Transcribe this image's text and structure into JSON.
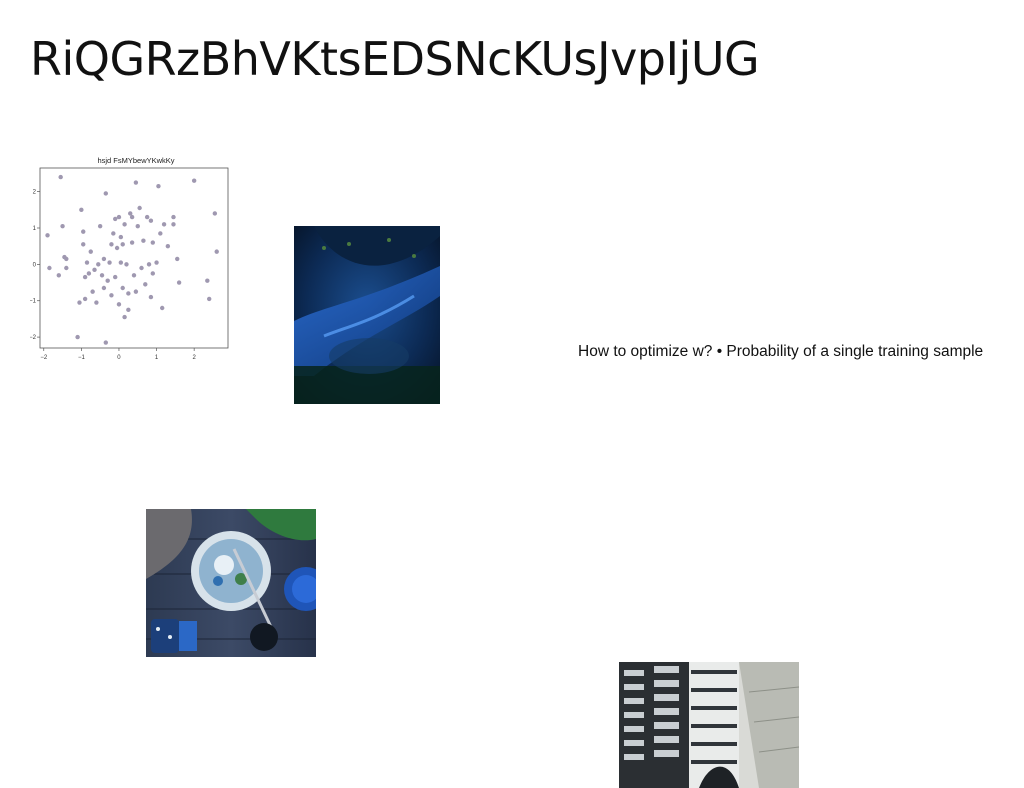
{
  "slide": {
    "title": "RiQGRzBhVKtsEDSNcKUsJvpIjUG",
    "caption": "How to optimize w? • Probability of a single training sample"
  },
  "images": {
    "blue_scene": "blue-dark-abstract-photo",
    "food_table": "food-bowl-table-photo",
    "building": "modern-building-photo"
  },
  "colors": {
    "point": "#9f98b0",
    "axes": "#555555"
  },
  "chart_data": {
    "type": "scatter",
    "title": "hsjd FsMYbewYKwkKy",
    "xlabel": "",
    "ylabel": "",
    "xlim": [
      -2.1,
      2.9
    ],
    "ylim": [
      -2.3,
      2.65
    ],
    "xticks": [
      -2,
      -1,
      0,
      1,
      2
    ],
    "yticks": [
      -2,
      -1,
      0,
      1,
      2
    ],
    "points": [
      [
        -1.55,
        2.4
      ],
      [
        -1.9,
        0.8
      ],
      [
        -1.85,
        -0.1
      ],
      [
        -1.6,
        -0.3
      ],
      [
        -1.5,
        1.05
      ],
      [
        -1.45,
        0.2
      ],
      [
        -1.4,
        0.15
      ],
      [
        -1.4,
        -0.1
      ],
      [
        -1.1,
        -2.0
      ],
      [
        -1.05,
        -1.05
      ],
      [
        -1.0,
        1.5
      ],
      [
        -0.95,
        0.9
      ],
      [
        -0.95,
        0.55
      ],
      [
        -0.9,
        -0.35
      ],
      [
        -0.9,
        -0.95
      ],
      [
        -0.85,
        0.05
      ],
      [
        -0.8,
        -0.25
      ],
      [
        -0.75,
        0.35
      ],
      [
        -0.7,
        -0.75
      ],
      [
        -0.65,
        -0.15
      ],
      [
        -0.6,
        -1.05
      ],
      [
        -0.55,
        0.0
      ],
      [
        -0.5,
        1.05
      ],
      [
        -0.45,
        -0.3
      ],
      [
        -0.4,
        0.15
      ],
      [
        -0.4,
        -0.65
      ],
      [
        -0.35,
        1.95
      ],
      [
        -0.35,
        -2.15
      ],
      [
        -0.3,
        -0.45
      ],
      [
        -0.25,
        0.05
      ],
      [
        -0.2,
        0.55
      ],
      [
        -0.2,
        -0.85
      ],
      [
        -0.15,
        0.85
      ],
      [
        -0.1,
        1.25
      ],
      [
        -0.1,
        -0.35
      ],
      [
        -0.05,
        0.45
      ],
      [
        0.0,
        1.3
      ],
      [
        0.0,
        -1.1
      ],
      [
        0.05,
        0.75
      ],
      [
        0.05,
        0.05
      ],
      [
        0.1,
        0.55
      ],
      [
        0.1,
        -0.65
      ],
      [
        0.15,
        1.1
      ],
      [
        0.15,
        -1.45
      ],
      [
        0.2,
        0.0
      ],
      [
        0.25,
        -0.8
      ],
      [
        0.25,
        -1.25
      ],
      [
        0.3,
        1.4
      ],
      [
        0.35,
        1.3
      ],
      [
        0.35,
        0.6
      ],
      [
        0.4,
        -0.3
      ],
      [
        0.45,
        2.25
      ],
      [
        0.45,
        -0.75
      ],
      [
        0.5,
        1.05
      ],
      [
        0.55,
        1.55
      ],
      [
        0.6,
        -0.1
      ],
      [
        0.65,
        0.65
      ],
      [
        0.7,
        -0.55
      ],
      [
        0.75,
        1.3
      ],
      [
        0.8,
        0.0
      ],
      [
        0.85,
        1.2
      ],
      [
        0.85,
        -0.9
      ],
      [
        0.9,
        0.6
      ],
      [
        0.9,
        -0.25
      ],
      [
        1.0,
        0.05
      ],
      [
        1.05,
        2.15
      ],
      [
        1.1,
        0.85
      ],
      [
        1.15,
        -1.2
      ],
      [
        1.2,
        1.1
      ],
      [
        1.3,
        0.5
      ],
      [
        1.45,
        1.3
      ],
      [
        1.45,
        1.1
      ],
      [
        1.55,
        0.15
      ],
      [
        1.6,
        -0.5
      ],
      [
        2.0,
        2.3
      ],
      [
        2.35,
        -0.45
      ],
      [
        2.4,
        -0.95
      ],
      [
        2.55,
        1.4
      ],
      [
        2.6,
        0.35
      ]
    ]
  }
}
